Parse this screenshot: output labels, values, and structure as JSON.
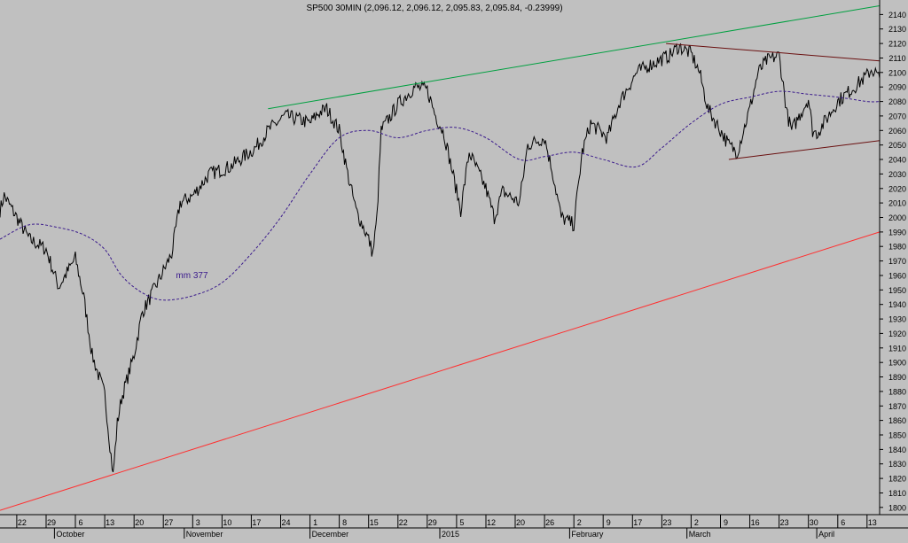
{
  "title": "SP500 30MIN (2,096.12, 2,096.12, 2,095.83, 2,095.84, -0.23999)",
  "chart_data": {
    "type": "line",
    "title": "SP500 30MIN (2,096.12, 2,096.12, 2,095.83, 2,095.84, -0.23999)",
    "xlabel": "",
    "ylabel": "",
    "x_range": [
      "2014-09-18",
      "2015-04-16"
    ],
    "ylim": [
      1795,
      2150
    ],
    "y_ticks": [
      1800,
      1810,
      1820,
      1830,
      1840,
      1850,
      1860,
      1870,
      1880,
      1890,
      1900,
      1910,
      1920,
      1930,
      1940,
      1950,
      1960,
      1970,
      1980,
      1990,
      2000,
      2010,
      2020,
      2030,
      2040,
      2050,
      2060,
      2070,
      2080,
      2090,
      2100,
      2110,
      2120,
      2130,
      2140
    ],
    "y_axis_position": "right",
    "grid": false,
    "day_ticks": [
      {
        "date": "2014-09-22",
        "label": "22"
      },
      {
        "date": "2014-09-29",
        "label": "29"
      },
      {
        "date": "2014-10-06",
        "label": "6"
      },
      {
        "date": "2014-10-13",
        "label": "13"
      },
      {
        "date": "2014-10-20",
        "label": "20"
      },
      {
        "date": "2014-10-27",
        "label": "27"
      },
      {
        "date": "2014-11-03",
        "label": "3"
      },
      {
        "date": "2014-11-10",
        "label": "10"
      },
      {
        "date": "2014-11-17",
        "label": "17"
      },
      {
        "date": "2014-11-24",
        "label": "24"
      },
      {
        "date": "2014-12-01",
        "label": "1"
      },
      {
        "date": "2014-12-08",
        "label": "8"
      },
      {
        "date": "2014-12-15",
        "label": "15"
      },
      {
        "date": "2014-12-22",
        "label": "22"
      },
      {
        "date": "2014-12-29",
        "label": "29"
      },
      {
        "date": "2015-01-05",
        "label": "5"
      },
      {
        "date": "2015-01-12",
        "label": "12"
      },
      {
        "date": "2015-01-19",
        "label": "20"
      },
      {
        "date": "2015-01-26",
        "label": "26"
      },
      {
        "date": "2015-02-02",
        "label": "2"
      },
      {
        "date": "2015-02-09",
        "label": "9"
      },
      {
        "date": "2015-02-16",
        "label": "17"
      },
      {
        "date": "2015-02-23",
        "label": "23"
      },
      {
        "date": "2015-03-02",
        "label": "2"
      },
      {
        "date": "2015-03-09",
        "label": "9"
      },
      {
        "date": "2015-03-16",
        "label": "16"
      },
      {
        "date": "2015-03-23",
        "label": "23"
      },
      {
        "date": "2015-03-30",
        "label": "30"
      },
      {
        "date": "2015-04-06",
        "label": "6"
      },
      {
        "date": "2015-04-13",
        "label": "13"
      }
    ],
    "month_ticks": [
      {
        "date": "2014-10-01",
        "label": "October"
      },
      {
        "date": "2014-11-01",
        "label": "November"
      },
      {
        "date": "2014-12-01",
        "label": "December"
      },
      {
        "date": "2015-01-01",
        "label": "2015"
      },
      {
        "date": "2015-02-01",
        "label": "February"
      },
      {
        "date": "2015-03-01",
        "label": "March"
      },
      {
        "date": "2015-04-01",
        "label": "April"
      }
    ],
    "series": [
      {
        "kind": "price",
        "color": "#000000",
        "x": [
          "2014-09-18",
          "2014-09-19",
          "2014-09-22",
          "2014-09-25",
          "2014-09-29",
          "2014-10-02",
          "2014-10-06",
          "2014-10-08",
          "2014-10-10",
          "2014-10-13",
          "2014-10-15",
          "2014-10-16",
          "2014-10-17",
          "2014-10-20",
          "2014-10-22",
          "2014-10-23",
          "2014-10-27",
          "2014-10-29",
          "2014-10-31",
          "2014-11-03",
          "2014-11-07",
          "2014-11-12",
          "2014-11-18",
          "2014-11-21",
          "2014-11-25",
          "2014-11-28",
          "2014-12-01",
          "2014-12-03",
          "2014-12-05",
          "2014-12-08",
          "2014-12-10",
          "2014-12-12",
          "2014-12-15",
          "2014-12-16",
          "2014-12-17",
          "2014-12-18",
          "2014-12-22",
          "2014-12-26",
          "2014-12-29",
          "2014-12-31",
          "2015-01-02",
          "2015-01-06",
          "2015-01-08",
          "2015-01-12",
          "2015-01-14",
          "2015-01-16",
          "2015-01-20",
          "2015-01-22",
          "2015-01-26",
          "2015-01-28",
          "2015-01-30",
          "2015-02-02",
          "2015-02-04",
          "2015-02-06",
          "2015-02-10",
          "2015-02-13",
          "2015-02-17",
          "2015-02-20",
          "2015-02-25",
          "2015-02-27",
          "2015-03-02",
          "2015-03-04",
          "2015-03-06",
          "2015-03-09",
          "2015-03-11",
          "2015-03-13",
          "2015-03-16",
          "2015-03-18",
          "2015-03-20",
          "2015-03-23",
          "2015-03-25",
          "2015-03-26",
          "2015-03-30",
          "2015-03-31",
          "2015-04-01",
          "2015-04-02",
          "2015-04-06",
          "2015-04-08",
          "2015-04-10",
          "2015-04-13",
          "2015-04-14",
          "2015-04-15",
          "2015-04-16"
        ],
        "y": [
          2005,
          2015,
          2000,
          1985,
          1978,
          1952,
          1972,
          1945,
          1905,
          1878,
          1822,
          1858,
          1875,
          1905,
          1935,
          1940,
          1963,
          1975,
          2010,
          2015,
          2030,
          2035,
          2048,
          2060,
          2070,
          2068,
          2065,
          2072,
          2075,
          2060,
          2030,
          2005,
          1985,
          1975,
          2000,
          2060,
          2078,
          2090,
          2088,
          2070,
          2058,
          2005,
          2045,
          2020,
          2000,
          2018,
          2010,
          2050,
          2055,
          2030,
          2000,
          1995,
          2045,
          2065,
          2055,
          2080,
          2100,
          2105,
          2112,
          2118,
          2113,
          2100,
          2075,
          2060,
          2050,
          2045,
          2075,
          2100,
          2108,
          2112,
          2070,
          2060,
          2082,
          2060,
          2058,
          2062,
          2080,
          2085,
          2090,
          2098,
          2102,
          2100,
          2096
        ]
      },
      {
        "kind": "ma",
        "name": "mm 377",
        "color": "#3a1a8c",
        "x": [
          "2014-09-18",
          "2014-09-25",
          "2014-10-02",
          "2014-10-08",
          "2014-10-13",
          "2014-10-17",
          "2014-10-22",
          "2014-10-27",
          "2014-11-03",
          "2014-11-10",
          "2014-11-17",
          "2014-11-24",
          "2014-12-01",
          "2014-12-08",
          "2014-12-15",
          "2014-12-22",
          "2014-12-29",
          "2015-01-05",
          "2015-01-12",
          "2015-01-20",
          "2015-01-26",
          "2015-02-02",
          "2015-02-09",
          "2015-02-17",
          "2015-02-23",
          "2015-03-02",
          "2015-03-09",
          "2015-03-16",
          "2015-03-23",
          "2015-03-30",
          "2015-04-06",
          "2015-04-13",
          "2015-04-16"
        ],
        "y": [
          1985,
          1995,
          1993,
          1988,
          1978,
          1960,
          1948,
          1943,
          1946,
          1955,
          1975,
          2000,
          2030,
          2055,
          2060,
          2055,
          2060,
          2062,
          2055,
          2040,
          2042,
          2045,
          2040,
          2035,
          2048,
          2065,
          2078,
          2083,
          2087,
          2085,
          2083,
          2080,
          2080
        ]
      },
      {
        "kind": "trendline",
        "color": "#ff3030",
        "x": [
          "2014-09-18",
          "2015-04-16"
        ],
        "y": [
          1798,
          1990
        ]
      },
      {
        "kind": "trendline",
        "color": "#00a040",
        "x": [
          "2014-11-21",
          "2015-04-16"
        ],
        "y": [
          2075,
          2146
        ]
      },
      {
        "kind": "trendline",
        "color": "#6a1010",
        "x": [
          "2015-02-24",
          "2015-04-16"
        ],
        "y": [
          2120,
          2108
        ]
      },
      {
        "kind": "trendline",
        "color": "#6a1010",
        "x": [
          "2015-03-11",
          "2015-04-16"
        ],
        "y": [
          2040,
          2053
        ]
      }
    ],
    "annotations": [
      {
        "text": "mm 377",
        "x": "2014-10-30",
        "y": 1958,
        "color": "#3a1a8c"
      }
    ]
  }
}
